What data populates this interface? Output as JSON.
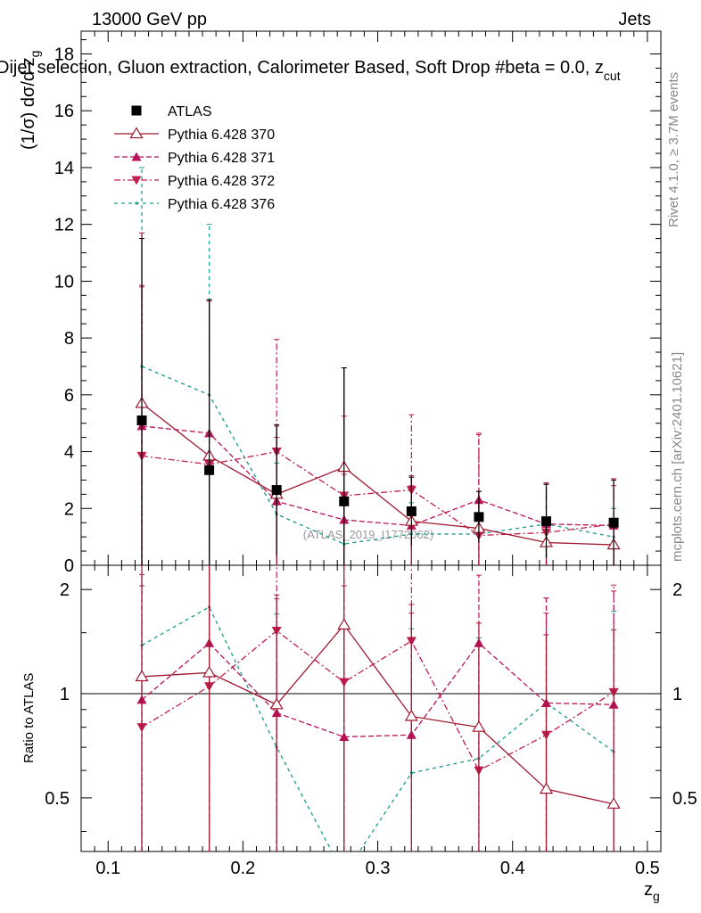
{
  "header": {
    "energy": "13000 GeV pp",
    "category": "Jets",
    "subtitle": "Dijet selection, Gluon extraction, Calorimeter Based, Soft Drop #beta = 0.0, z",
    "subtitle_sub": "cut"
  },
  "side": {
    "rivet": "Rivet 4.1.0, ≥ 3.7M events",
    "mcplots": "mcplots.cern.ch [arXiv:2401.10621]"
  },
  "analysis_label": "(ATLAS_2019_I1772062)",
  "colors": {
    "atlas": "#000000",
    "p370": "#a0182f",
    "p371": "#b8135a",
    "p372": "#c01c4c",
    "p376": "#169a8a"
  },
  "chart_data": [
    {
      "type": "line",
      "title": "",
      "xlabel": "z",
      "xlabel_sub": "g",
      "ylabel": "(1/σ) dσ/d z",
      "ylabel_sub": "g",
      "xlim": [
        0.08,
        0.51
      ],
      "ylim": [
        0,
        18.8
      ],
      "xticks": [
        0.1,
        0.2,
        0.3,
        0.4,
        0.5
      ],
      "xtick_labels": [
        "0.1",
        "0.2",
        "0.3",
        "0.4",
        "0.5"
      ],
      "yticks": [
        0,
        2,
        4,
        6,
        8,
        10,
        12,
        14,
        16,
        18
      ],
      "ytick_labels": [
        "0",
        "2",
        "4",
        "6",
        "8",
        "10",
        "12",
        "14",
        "16",
        "18"
      ],
      "x": [
        0.125,
        0.175,
        0.225,
        0.275,
        0.325,
        0.375,
        0.425,
        0.475
      ],
      "series": [
        {
          "key": "atlas",
          "name": "ATLAS",
          "marker": "square",
          "line": "none",
          "values": [
            5.1,
            3.35,
            2.65,
            2.25,
            1.9,
            1.7,
            1.55,
            1.5
          ],
          "err": [
            6.4,
            6.0,
            2.3,
            4.7,
            1.2,
            0.9,
            1.3,
            1.5
          ]
        },
        {
          "key": "p370",
          "name": "Pythia 6.428 370",
          "marker": "triangle-up-open",
          "dash": "",
          "values": [
            5.7,
            3.85,
            2.5,
            3.45,
            1.55,
            1.3,
            0.8,
            0.72
          ],
          "err": [
            6.0,
            5.5,
            2.4,
            3.5,
            1.6,
            1.3,
            0.8,
            0.72
          ]
        },
        {
          "key": "p371",
          "name": "Pythia 6.428 371",
          "marker": "triangle-up",
          "dash": "6,3",
          "values": [
            4.9,
            4.65,
            2.25,
            1.6,
            1.4,
            2.3,
            1.45,
            1.4
          ],
          "err": [
            4.9,
            4.65,
            2.25,
            1.6,
            1.4,
            2.3,
            1.45,
            1.4
          ]
        },
        {
          "key": "p372",
          "name": "Pythia 6.428 372",
          "marker": "triangle-down",
          "dash": "7,3,2,3",
          "values": [
            3.85,
            3.55,
            4.0,
            2.45,
            2.65,
            1.05,
            1.15,
            1.45
          ],
          "err": [
            6.0,
            5.8,
            3.95,
            2.8,
            2.65,
            3.6,
            1.7,
            1.6
          ]
        },
        {
          "key": "p376",
          "name": "Pythia 6.428 376",
          "marker": "dot",
          "dash": "4,4",
          "values": [
            7.0,
            6.0,
            1.8,
            0.75,
            1.1,
            1.1,
            1.45,
            1.0
          ],
          "err": [
            7.0,
            6.0,
            1.8,
            0.75,
            1.1,
            1.1,
            1.45,
            1.0
          ]
        }
      ]
    },
    {
      "type": "line",
      "title": "",
      "xlabel": "z",
      "ylabel": "Ratio to ATLAS",
      "yscale": "log",
      "xlim": [
        0.08,
        0.51
      ],
      "ylim": [
        0.35,
        2.35
      ],
      "yticks": [
        0.5,
        1,
        2
      ],
      "ytick_labels": [
        "0.5",
        "1",
        "2"
      ],
      "reference": 1,
      "x": [
        0.125,
        0.175,
        0.225,
        0.275,
        0.325,
        0.375,
        0.425,
        0.475
      ],
      "series": [
        {
          "key": "p370",
          "name": "Pythia 6.428 370",
          "values": [
            1.12,
            1.15,
            0.93,
            1.58,
            0.86,
            0.8,
            0.53,
            0.48
          ]
        },
        {
          "key": "p371",
          "name": "Pythia 6.428 371",
          "values": [
            0.96,
            1.4,
            0.88,
            0.75,
            0.76,
            1.4,
            0.94,
            0.93
          ]
        },
        {
          "key": "p372",
          "name": "Pythia 6.428 372",
          "values": [
            0.8,
            1.05,
            1.52,
            1.08,
            1.42,
            0.6,
            0.76,
            1.01
          ]
        },
        {
          "key": "p376",
          "name": "Pythia 6.428 376",
          "values": [
            1.38,
            1.78,
            0.7,
            0.3,
            0.59,
            0.65,
            0.94,
            0.68
          ]
        }
      ],
      "errors": [
        1.25,
        1.45,
        1.0,
        1.3,
        0.95,
        0.8,
        0.95,
        1.05
      ]
    }
  ]
}
